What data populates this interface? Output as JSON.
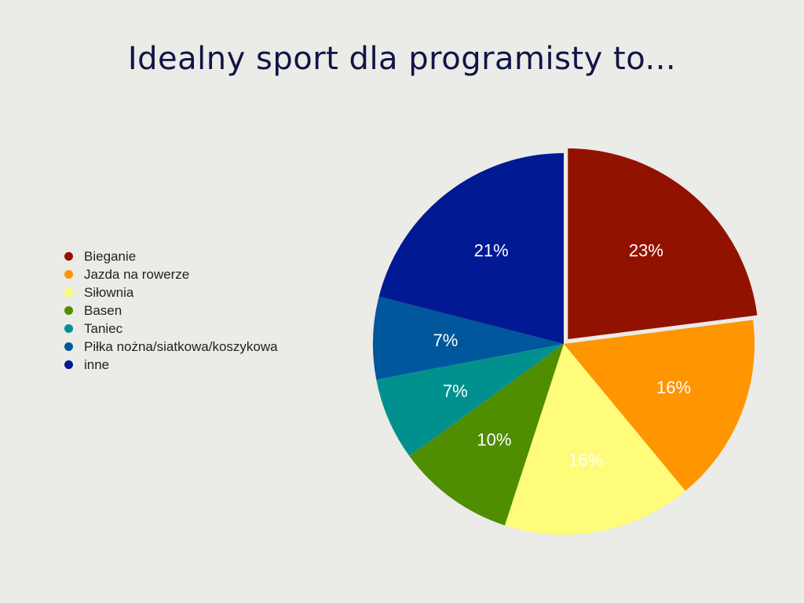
{
  "chart_data": {
    "type": "pie",
    "title": "Idealny sport dla programisty to...",
    "legend_position": "left",
    "slices": [
      {
        "label": "Bieganie",
        "value": 23,
        "display": "23%",
        "color": "#921200",
        "exploded": true
      },
      {
        "label": "Jazda na rowerze",
        "value": 16,
        "display": "16%",
        "color": "#ff9500",
        "exploded": false
      },
      {
        "label": "Siłownia",
        "value": 16,
        "display": "16%",
        "color": "#fefc78",
        "exploded": false
      },
      {
        "label": "Basen",
        "value": 10,
        "display": "10%",
        "color": "#4e8e00",
        "exploded": false
      },
      {
        "label": "Taniec",
        "value": 7,
        "display": "7%",
        "color": "#00918f",
        "exploded": false
      },
      {
        "label": "Piłka nożna/siatkowa/koszykowa",
        "value": 7,
        "display": "7%",
        "color": "#00579b",
        "exploded": false
      },
      {
        "label": "inne",
        "value": 21,
        "display": "21%",
        "color": "#011993",
        "exploded": false
      }
    ]
  }
}
